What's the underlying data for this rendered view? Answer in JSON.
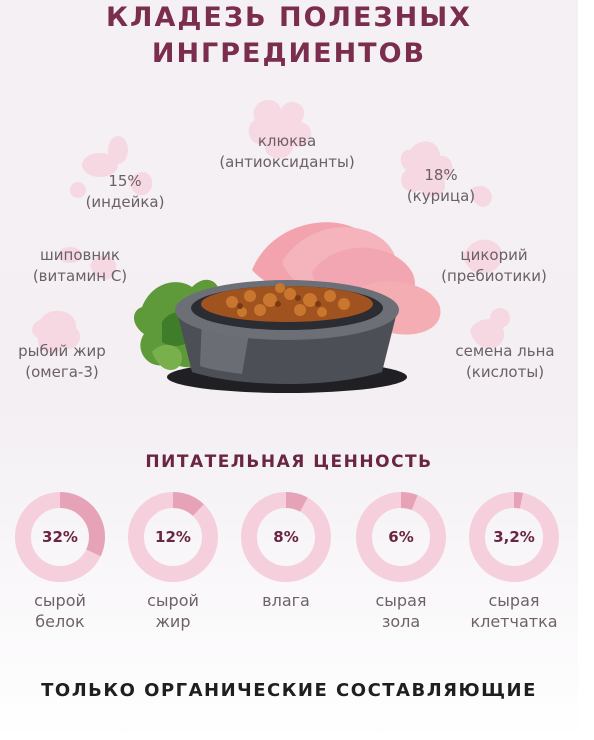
{
  "title": {
    "line1": "КЛАДЕЗЬ ПОЛЕЗНЫХ",
    "line2": "ИНГРЕДИЕНТОВ"
  },
  "ingredients": [
    {
      "name": "клюква",
      "note": "(антиоксиданты)"
    },
    {
      "name": "15%",
      "note": "(индейка)"
    },
    {
      "name": "18%",
      "note": "(курица)"
    },
    {
      "name": "шиповник",
      "note": "(витамин С)"
    },
    {
      "name": "цикорий",
      "note": "(пребиотики)"
    },
    {
      "name": "рыбий жир",
      "note": "(омега-3)"
    },
    {
      "name": "семена льна",
      "note": "(кислоты)"
    }
  ],
  "nutrition": {
    "title": "ПИТАТЕЛЬНАЯ ЦЕННОСТЬ",
    "items": [
      {
        "value": "32%",
        "fraction": 0.32,
        "line1": "сырой",
        "line2": "белок"
      },
      {
        "value": "12%",
        "fraction": 0.12,
        "line1": "сырой",
        "line2": "жир"
      },
      {
        "value": "8%",
        "fraction": 0.08,
        "line1": "влага",
        "line2": ""
      },
      {
        "value": "6%",
        "fraction": 0.06,
        "line1": "сырая",
        "line2": "зола"
      },
      {
        "value": "3,2%",
        "fraction": 0.032,
        "line1": "сырая",
        "line2": "клетчатка"
      }
    ]
  },
  "footer": {
    "text": "ТОЛЬКО ОРГАНИЧЕСКИЕ СОСТАВЛЯЮЩИЕ"
  },
  "colors": {
    "accent": "#7a2d4c",
    "ring_light": "#f6cfdc",
    "ring_dark": "#e6a3b8",
    "text_muted": "#6c6068"
  }
}
